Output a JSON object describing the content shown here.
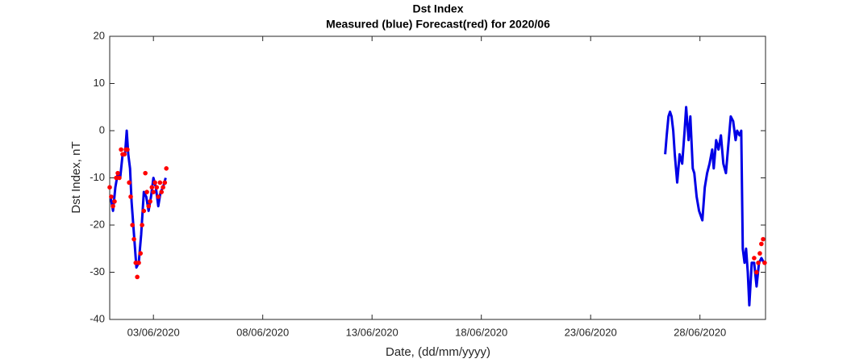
{
  "chart_data": {
    "type": "line",
    "title": "Dst Index",
    "subtitle": "Measured (blue) Forecast(red) for 2020/06",
    "xlabel": "Date, (dd/mm/yyyy)",
    "ylabel": "Dst Index, nT",
    "xlim": [
      1,
      31
    ],
    "ylim": [
      -40,
      20
    ],
    "xticks": [
      {
        "value": 3,
        "label": "03/06/2020"
      },
      {
        "value": 8,
        "label": "08/06/2020"
      },
      {
        "value": 13,
        "label": "13/06/2020"
      },
      {
        "value": 18,
        "label": "18/06/2020"
      },
      {
        "value": 23,
        "label": "23/06/2020"
      },
      {
        "value": 28,
        "label": "28/06/2020"
      }
    ],
    "yticks": [
      -40,
      -30,
      -20,
      -10,
      0,
      10,
      20
    ],
    "series": [
      {
        "type": "line",
        "color": "#0000e6",
        "x": [
          1.04,
          1.15,
          1.26,
          1.37,
          1.48,
          1.59,
          1.7,
          1.78,
          1.85,
          1.93,
          2.0,
          2.11,
          2.22,
          2.33,
          2.44,
          2.56,
          2.67,
          2.78,
          2.89,
          3.0,
          3.11,
          3.22,
          3.33,
          3.44,
          3.56,
          15.0,
          26.41,
          26.48,
          26.56,
          26.63,
          26.7,
          26.78,
          26.85,
          26.96,
          27.07,
          27.19,
          27.3,
          27.37,
          27.48,
          27.56,
          27.67,
          27.74,
          27.85,
          27.96,
          28.11,
          28.22,
          28.33,
          28.44,
          28.56,
          28.63,
          28.74,
          28.85,
          28.96,
          29.07,
          29.19,
          29.3,
          29.41,
          29.52,
          29.63,
          29.7,
          29.81,
          29.89,
          29.96,
          30.04,
          30.11,
          30.19,
          30.26,
          30.37,
          30.48,
          30.59,
          30.7,
          30.81,
          30.93
        ],
        "values": [
          -14,
          -17,
          -12,
          -9,
          -10,
          -5,
          -5,
          0,
          -5,
          -8,
          -15,
          -22,
          -29,
          -28,
          -22,
          -13,
          -14,
          -17,
          -14,
          -10,
          -12,
          -16,
          -13,
          -12,
          -10,
          null,
          -5,
          -1,
          3,
          4,
          3,
          0,
          -5,
          -11,
          -5,
          -7,
          0,
          5,
          -2,
          3,
          -8,
          -9,
          -14,
          -17,
          -19,
          -12,
          -9,
          -7,
          -4,
          -8,
          -2,
          -4,
          -1,
          -7,
          -9,
          -3,
          3,
          2,
          -2,
          0,
          -1,
          0,
          -25,
          -28,
          -25,
          -30,
          -37,
          -28,
          -28,
          -33,
          -28,
          -27,
          -28
        ]
      },
      {
        "type": "scatter",
        "color": "#ff0000",
        "x": [
          1.0,
          1.07,
          1.15,
          1.22,
          1.3,
          1.37,
          1.44,
          1.52,
          1.59,
          1.67,
          1.74,
          1.81,
          1.89,
          1.96,
          2.04,
          2.11,
          2.19,
          2.26,
          2.33,
          2.41,
          2.48,
          2.56,
          2.63,
          2.7,
          2.78,
          2.85,
          2.93,
          3.0,
          3.07,
          3.15,
          3.22,
          3.3,
          3.37,
          3.44,
          3.52,
          3.59,
          30.48,
          30.59,
          30.67,
          30.74,
          30.81,
          30.89,
          30.96
        ],
        "values": [
          -12,
          -14,
          -16,
          -15,
          -10,
          -9,
          -10,
          -4,
          -5,
          -5,
          -4,
          -4,
          -11,
          -14,
          -20,
          -23,
          -28,
          -31,
          -28,
          -26,
          -20,
          -17,
          -9,
          -13,
          -16,
          -15,
          -12,
          -13,
          -11,
          -12,
          -14,
          -11,
          -13,
          -12,
          -11,
          -8,
          -27,
          -30,
          -28,
          -26,
          -24,
          -23,
          -28
        ]
      }
    ]
  }
}
